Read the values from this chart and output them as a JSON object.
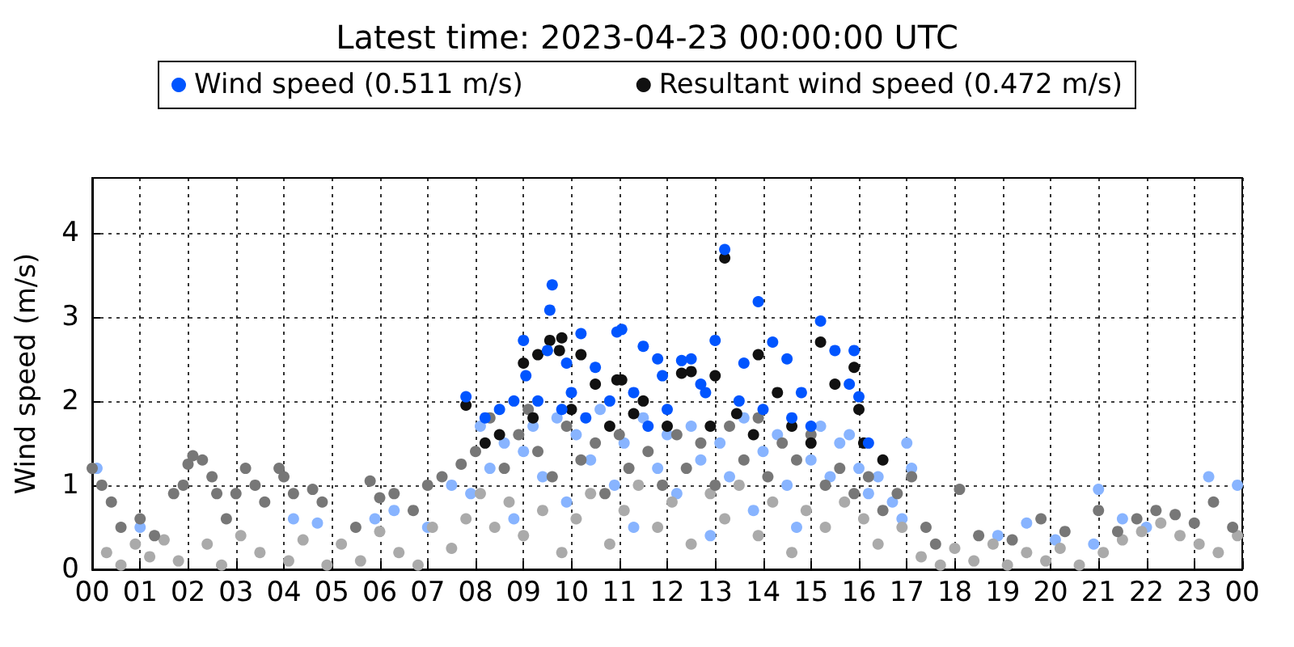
{
  "chart_data": {
    "type": "scatter",
    "title": "Latest time: 2023-04-23 00:00:00 UTC",
    "ylabel": "Wind speed (m/s)",
    "legend": "top",
    "grid": true,
    "marker": "circle",
    "xlim": [
      0,
      24
    ],
    "xticks": [
      {
        "value": 0,
        "label": "00"
      },
      {
        "value": 1,
        "label": "01"
      },
      {
        "value": 2,
        "label": "02"
      },
      {
        "value": 3,
        "label": "03"
      },
      {
        "value": 4,
        "label": "04"
      },
      {
        "value": 5,
        "label": "05"
      },
      {
        "value": 6,
        "label": "06"
      },
      {
        "value": 7,
        "label": "07"
      },
      {
        "value": 8,
        "label": "08"
      },
      {
        "value": 9,
        "label": "09"
      },
      {
        "value": 10,
        "label": "10"
      },
      {
        "value": 11,
        "label": "11"
      },
      {
        "value": 12,
        "label": "12"
      },
      {
        "value": 13,
        "label": "13"
      },
      {
        "value": 14,
        "label": "14"
      },
      {
        "value": 15,
        "label": "15"
      },
      {
        "value": 16,
        "label": "16"
      },
      {
        "value": 17,
        "label": "17"
      },
      {
        "value": 18,
        "label": "18"
      },
      {
        "value": 19,
        "label": "19"
      },
      {
        "value": 20,
        "label": "20"
      },
      {
        "value": 21,
        "label": "21"
      },
      {
        "value": 22,
        "label": "22"
      },
      {
        "value": 23,
        "label": "23"
      },
      {
        "value": 24,
        "label": "00"
      }
    ],
    "ylim": [
      0,
      4.65
    ],
    "yticks": [
      0,
      1,
      2,
      3,
      4
    ],
    "series": [
      {
        "name": "Wind speed (0.511 m/s)",
        "color": "#0055ff",
        "x": [
          7.8,
          9.0,
          9.05,
          9.6,
          9.55,
          9.5,
          9.9,
          10.2,
          10.5,
          10.95,
          11.05,
          11.5,
          11.8,
          12.3,
          12.5,
          13.0,
          13.2,
          13.9,
          14.2,
          14.5,
          15.2,
          15.5,
          15.8,
          16.0,
          8.5,
          8.2,
          9.3,
          10.0,
          10.8,
          11.3,
          12.0,
          12.8,
          13.5,
          14.0,
          14.8,
          15.0,
          16.2,
          10.3,
          11.9,
          12.7,
          13.6,
          14.6,
          9.8,
          8.8,
          11.6,
          15.9
        ],
        "values": [
          2.05,
          2.72,
          2.3,
          3.38,
          3.08,
          2.6,
          2.45,
          2.8,
          2.4,
          2.82,
          2.85,
          2.65,
          2.5,
          2.48,
          2.5,
          2.72,
          3.8,
          3.18,
          2.7,
          2.5,
          2.95,
          2.6,
          2.2,
          2.05,
          1.9,
          1.8,
          2.0,
          2.1,
          2.0,
          2.1,
          1.9,
          2.1,
          2.0,
          1.9,
          2.1,
          1.7,
          1.5,
          1.8,
          2.3,
          2.2,
          2.45,
          1.8,
          1.9,
          2.0,
          1.7,
          2.6
        ]
      },
      {
        "name": "Resultant wind speed (0.472 m/s)",
        "color": "#111111",
        "x": [
          7.8,
          9.0,
          9.55,
          9.3,
          9.75,
          9.8,
          10.2,
          10.5,
          10.95,
          11.05,
          11.5,
          12.3,
          12.5,
          13.0,
          13.2,
          13.9,
          14.3,
          15.2,
          15.5,
          16.0,
          8.5,
          9.2,
          10.0,
          11.3,
          12.0,
          12.9,
          13.45,
          14.6,
          15.9,
          16.1,
          8.2,
          10.8,
          13.8,
          15.0,
          16.5
        ],
        "values": [
          1.95,
          2.45,
          2.72,
          2.55,
          2.6,
          2.75,
          2.55,
          2.2,
          2.25,
          2.25,
          2.0,
          2.33,
          2.35,
          2.3,
          3.7,
          2.55,
          2.1,
          2.7,
          2.2,
          1.9,
          1.6,
          1.8,
          1.9,
          1.85,
          1.7,
          1.7,
          1.85,
          1.7,
          2.4,
          1.5,
          1.5,
          1.7,
          1.6,
          1.5,
          1.3
        ]
      },
      {
        "color": "#88b4ff",
        "x": [
          7.5,
          7.9,
          8.1,
          8.3,
          8.6,
          8.8,
          9.0,
          9.2,
          9.4,
          9.7,
          9.9,
          10.1,
          10.4,
          10.6,
          10.9,
          11.1,
          11.3,
          11.5,
          11.8,
          12.0,
          12.2,
          12.5,
          12.7,
          12.9,
          13.1,
          13.3,
          13.6,
          13.8,
          14.0,
          14.3,
          14.5,
          14.7,
          15.0,
          15.2,
          15.4,
          15.6,
          15.8,
          16.0,
          16.2,
          16.4,
          16.7,
          17.0,
          17.1,
          16.9,
          4.2,
          4.7,
          5.9,
          6.3,
          7.0,
          18.9,
          19.5,
          20.1,
          20.9,
          21.0,
          21.5,
          23.3,
          23.9,
          22.0,
          1.0,
          0.1
        ],
        "values": [
          1.0,
          0.9,
          1.7,
          1.2,
          1.5,
          0.6,
          1.4,
          1.7,
          1.1,
          1.8,
          0.8,
          1.6,
          1.3,
          1.9,
          1.0,
          1.5,
          0.5,
          1.8,
          1.2,
          1.6,
          0.9,
          1.7,
          1.3,
          0.4,
          1.5,
          1.1,
          1.8,
          0.7,
          1.4,
          1.6,
          1.0,
          0.5,
          1.3,
          1.7,
          1.1,
          1.5,
          1.6,
          1.2,
          0.9,
          1.1,
          0.8,
          1.5,
          1.2,
          0.6,
          0.6,
          0.55,
          0.6,
          0.7,
          0.5,
          0.4,
          0.55,
          0.35,
          0.3,
          0.95,
          0.6,
          1.1,
          1.0,
          0.5,
          0.5,
          1.2
        ]
      },
      {
        "color": "#aaaaaa",
        "x": [
          0.3,
          0.6,
          0.9,
          1.2,
          1.5,
          1.8,
          2.4,
          2.7,
          3.1,
          3.5,
          4.1,
          4.4,
          4.9,
          5.2,
          5.6,
          6.0,
          6.4,
          6.8,
          7.1,
          7.5,
          7.8,
          8.1,
          8.4,
          8.7,
          9.0,
          9.4,
          9.8,
          10.1,
          10.4,
          10.8,
          11.1,
          11.4,
          11.8,
          12.1,
          12.5,
          12.9,
          13.2,
          13.5,
          13.9,
          14.2,
          14.6,
          14.9,
          15.3,
          15.7,
          16.1,
          16.4,
          16.9,
          17.3,
          17.7,
          18.0,
          18.4,
          18.8,
          19.1,
          19.5,
          19.9,
          20.2,
          20.6,
          21.1,
          21.5,
          21.9,
          22.3,
          22.7,
          23.1,
          23.5,
          23.9
        ],
        "values": [
          0.2,
          0.05,
          0.3,
          0.15,
          0.35,
          0.1,
          0.3,
          0.05,
          0.4,
          0.2,
          0.1,
          0.35,
          0.05,
          0.3,
          0.1,
          0.45,
          0.2,
          0.05,
          0.5,
          0.25,
          0.6,
          0.9,
          0.5,
          0.8,
          0.4,
          0.7,
          0.2,
          0.6,
          0.9,
          0.3,
          0.7,
          1.0,
          0.5,
          0.8,
          0.3,
          0.9,
          0.6,
          1.0,
          0.4,
          0.8,
          0.2,
          0.7,
          0.5,
          0.8,
          0.6,
          0.3,
          0.5,
          0.15,
          0.05,
          0.25,
          0.1,
          0.3,
          0.05,
          0.2,
          0.1,
          0.25,
          0.05,
          0.2,
          0.35,
          0.45,
          0.55,
          0.4,
          0.3,
          0.2,
          0.4
        ]
      },
      {
        "color": "#777777",
        "x": [
          0.0,
          0.2,
          0.4,
          0.6,
          1.0,
          1.3,
          1.7,
          1.9,
          2.0,
          2.1,
          2.3,
          2.5,
          2.6,
          2.8,
          3.0,
          3.2,
          3.4,
          3.6,
          3.9,
          4.0,
          4.2,
          4.6,
          4.8,
          5.5,
          5.8,
          6.0,
          6.3,
          6.7,
          7.0,
          7.3,
          7.7,
          8.0,
          8.3,
          8.6,
          8.9,
          9.1,
          9.3,
          9.6,
          9.9,
          10.2,
          10.5,
          10.7,
          11.0,
          11.2,
          11.6,
          11.9,
          12.2,
          12.4,
          12.7,
          13.0,
          13.3,
          13.6,
          13.9,
          14.1,
          14.4,
          14.7,
          15.0,
          15.3,
          15.6,
          15.9,
          16.2,
          16.5,
          16.8,
          17.1,
          17.4,
          17.6,
          18.1,
          18.5,
          19.2,
          19.8,
          20.3,
          21.0,
          21.4,
          21.8,
          22.2,
          22.6,
          23.0,
          23.4,
          23.8
        ],
        "values": [
          1.2,
          1.0,
          0.8,
          0.5,
          0.6,
          0.4,
          0.9,
          1.0,
          1.25,
          1.35,
          1.3,
          1.1,
          0.9,
          0.6,
          0.9,
          1.2,
          1.0,
          0.8,
          1.2,
          1.1,
          0.9,
          0.95,
          0.8,
          0.5,
          1.05,
          0.85,
          0.9,
          0.7,
          1.0,
          1.1,
          1.25,
          1.4,
          1.8,
          1.2,
          1.6,
          1.9,
          1.4,
          1.1,
          1.7,
          1.3,
          1.5,
          0.9,
          1.6,
          1.2,
          1.4,
          1.0,
          1.6,
          1.2,
          1.5,
          1.0,
          1.7,
          1.3,
          1.8,
          1.1,
          1.5,
          1.3,
          1.6,
          1.0,
          1.2,
          0.9,
          1.1,
          0.7,
          0.9,
          1.1,
          0.5,
          0.3,
          0.95,
          0.4,
          0.35,
          0.6,
          0.45,
          0.7,
          0.45,
          0.6,
          0.7,
          0.65,
          0.55,
          0.8,
          0.5
        ]
      }
    ]
  }
}
